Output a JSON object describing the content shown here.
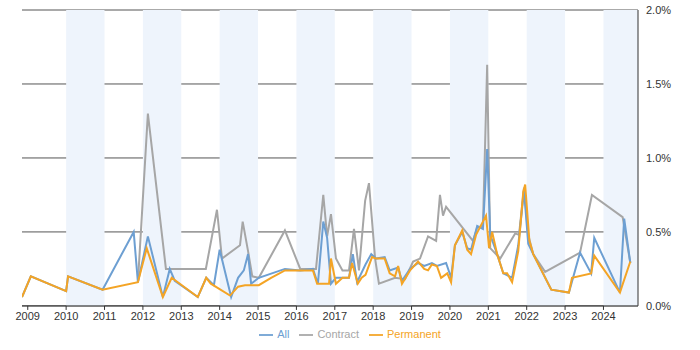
{
  "chart_data": {
    "type": "line",
    "xlim": [
      2008.85,
      2024.9
    ],
    "xticks": [
      2009,
      2010,
      2011,
      2012,
      2013,
      2014,
      2015,
      2016,
      2017,
      2018,
      2019,
      2020,
      2021,
      2022,
      2023,
      2024
    ],
    "ylim": [
      0,
      2
    ],
    "yticks": [
      {
        "value": 0,
        "label": "0.0%"
      },
      {
        "value": 0.5,
        "label": "0.5%"
      },
      {
        "value": 1,
        "label": "1.0%"
      },
      {
        "value": 1.5,
        "label": "1.5%"
      },
      {
        "value": 2,
        "label": "2.0%"
      }
    ],
    "grid": true,
    "legend": "bottom",
    "series": [
      {
        "name": "Contract",
        "color": "#a6a6a6",
        "x": [
          2011.87,
          2012.13,
          2012.6,
          2013.64,
          2013.93,
          2014.06,
          2014.53,
          2014.6,
          2014.74,
          2014.85,
          2015.02,
          2015.7,
          2016.1,
          2016.51,
          2016.7,
          2016.8,
          2016.9,
          2017.03,
          2017.2,
          2017.37,
          2017.5,
          2017.63,
          2017.79,
          2017.89,
          2018.05,
          2018.15,
          2018.57,
          2018.83,
          2019.04,
          2019.22,
          2019.43,
          2019.64,
          2019.74,
          2019.82,
          2019.9,
          2020.6,
          2020.71,
          2020.86,
          2020.97,
          2021.05,
          2021.31,
          2021.7,
          2021.8,
          2021.93,
          2022.04,
          2022.17,
          2022.48,
          2023.39,
          2023.7,
          2024.5,
          2024.7
        ],
        "values": [
          0.16,
          1.3,
          0.25,
          0.25,
          0.65,
          0.32,
          0.41,
          0.57,
          0.37,
          0.2,
          0.19,
          0.51,
          0.25,
          0.25,
          0.75,
          0.47,
          0.62,
          0.32,
          0.24,
          0.24,
          0.52,
          0.24,
          0.71,
          0.83,
          0.32,
          0.15,
          0.19,
          0.18,
          0.3,
          0.32,
          0.47,
          0.44,
          0.75,
          0.61,
          0.67,
          0.44,
          0.53,
          0.54,
          1.63,
          0.39,
          0.32,
          0.49,
          0.48,
          0.8,
          0.48,
          0.35,
          0.23,
          0.36,
          0.75,
          0.6,
          0.29
        ]
      },
      {
        "name": "All",
        "color": "#6d9fd2",
        "x": [
          2008.85,
          2009.08,
          2010.0,
          2010.05,
          2010.95,
          2011.76,
          2011.87,
          2012.13,
          2012.52,
          2012.7,
          2012.83,
          2013.43,
          2013.65,
          2013.85,
          2014.0,
          2014.3,
          2014.48,
          2014.63,
          2014.74,
          2014.82,
          2015.02,
          2015.7,
          2016.1,
          2016.43,
          2016.56,
          2016.7,
          2016.8,
          2016.9,
          2017.03,
          2017.37,
          2017.47,
          2017.58,
          2017.8,
          2017.95,
          2018.07,
          2018.3,
          2018.43,
          2018.65,
          2018.75,
          2018.96,
          2019.17,
          2019.33,
          2019.53,
          2019.66,
          2019.9,
          2020.03,
          2020.13,
          2020.32,
          2020.45,
          2020.55,
          2020.71,
          2020.86,
          2020.97,
          2021.05,
          2021.23,
          2021.39,
          2021.62,
          2021.78,
          2021.93,
          2022.04,
          2022.17,
          2022.64,
          2023.1,
          2023.39,
          2023.68,
          2023.76,
          2024.43,
          2024.54,
          2024.7
        ],
        "values": [
          0.06,
          0.2,
          0.1,
          0.2,
          0.11,
          0.5,
          0.16,
          0.47,
          0.06,
          0.25,
          0.17,
          0.06,
          0.19,
          0.14,
          0.38,
          0.06,
          0.19,
          0.24,
          0.35,
          0.15,
          0.19,
          0.25,
          0.24,
          0.25,
          0.15,
          0.57,
          0.46,
          0.15,
          0.19,
          0.19,
          0.35,
          0.16,
          0.28,
          0.35,
          0.32,
          0.33,
          0.24,
          0.26,
          0.17,
          0.25,
          0.29,
          0.27,
          0.29,
          0.27,
          0.29,
          0.19,
          0.41,
          0.5,
          0.39,
          0.38,
          0.54,
          0.52,
          1.06,
          0.48,
          0.35,
          0.22,
          0.19,
          0.41,
          0.78,
          0.42,
          0.35,
          0.11,
          0.09,
          0.36,
          0.22,
          0.46,
          0.09,
          0.59,
          0.29
        ]
      },
      {
        "name": "Permanent",
        "color": "#f4a425",
        "x": [
          2008.85,
          2009.08,
          2010.0,
          2010.05,
          2010.95,
          2011.87,
          2012.1,
          2012.52,
          2012.75,
          2013.43,
          2013.65,
          2013.77,
          2014.27,
          2014.48,
          2014.66,
          2015.02,
          2015.34,
          2015.7,
          2016.1,
          2016.43,
          2016.54,
          2016.85,
          2016.9,
          2017.03,
          2017.2,
          2017.37,
          2017.45,
          2017.6,
          2017.7,
          2017.8,
          2017.97,
          2018.07,
          2018.3,
          2018.43,
          2018.57,
          2018.65,
          2018.75,
          2018.96,
          2019.17,
          2019.33,
          2019.43,
          2019.53,
          2019.66,
          2019.77,
          2019.93,
          2020.03,
          2020.13,
          2020.32,
          2020.45,
          2020.55,
          2020.68,
          2020.94,
          2021.02,
          2021.1,
          2021.23,
          2021.39,
          2021.49,
          2021.62,
          2021.78,
          2021.91,
          2021.96,
          2022.07,
          2022.17,
          2022.64,
          2023.1,
          2023.18,
          2023.68,
          2023.76,
          2024.43,
          2024.48,
          2024.7
        ],
        "values": [
          0.06,
          0.2,
          0.1,
          0.2,
          0.11,
          0.16,
          0.39,
          0.06,
          0.19,
          0.06,
          0.19,
          0.15,
          0.07,
          0.13,
          0.14,
          0.14,
          0.19,
          0.24,
          0.24,
          0.24,
          0.15,
          0.15,
          0.32,
          0.15,
          0.19,
          0.19,
          0.29,
          0.15,
          0.19,
          0.21,
          0.33,
          0.32,
          0.32,
          0.22,
          0.2,
          0.27,
          0.15,
          0.24,
          0.3,
          0.25,
          0.24,
          0.28,
          0.27,
          0.19,
          0.22,
          0.16,
          0.41,
          0.51,
          0.38,
          0.35,
          0.48,
          0.61,
          0.39,
          0.5,
          0.35,
          0.22,
          0.22,
          0.16,
          0.37,
          0.77,
          0.82,
          0.44,
          0.35,
          0.11,
          0.09,
          0.19,
          0.22,
          0.34,
          0.09,
          0.13,
          0.3
        ]
      }
    ]
  }
}
